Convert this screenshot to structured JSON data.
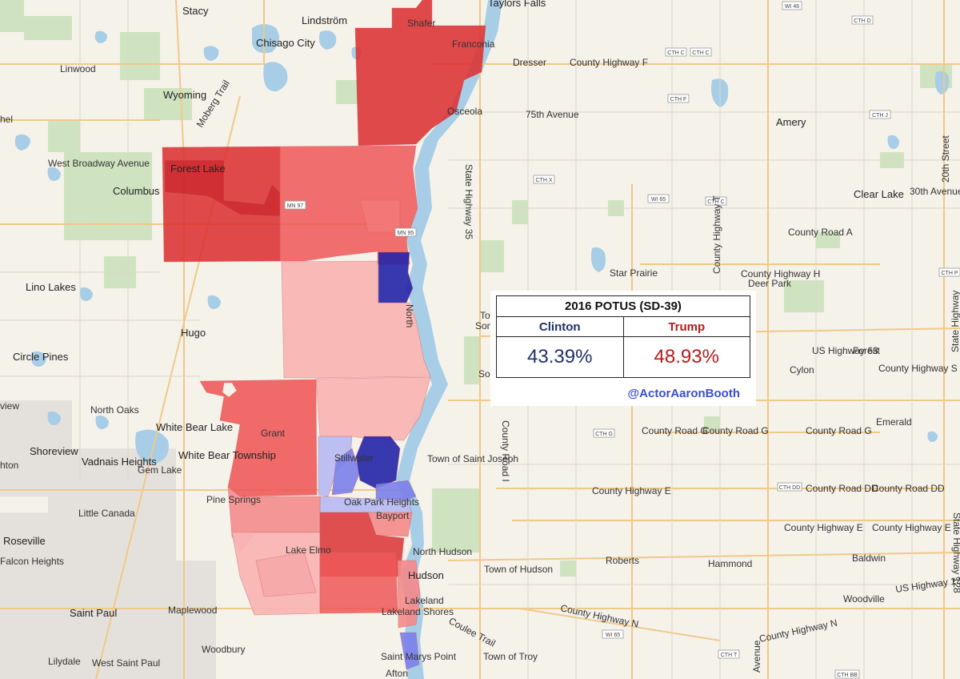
{
  "map": {
    "places": [
      "Stacy",
      "Lindström",
      "Taylors Falls",
      "Shafer",
      "Franconia",
      "Chisago City",
      "Linwood",
      "Wyoming",
      "Dresser",
      "Osceola",
      "Amery",
      "Forest Lake",
      "Columbus",
      "Clear Lake",
      "Star Prairie",
      "Deer Park",
      "Lino Lakes",
      "Hugo",
      "Circle Pines",
      "Forest",
      "Cylon",
      "North Oaks",
      "White Bear Lake",
      "White Bear Township",
      "Grant",
      "Shoreview",
      "Vadnais Heights",
      "Gem Lake",
      "Stillwater",
      "Town of Saint Joseph",
      "Emerald",
      "Little Canada",
      "Pine Springs",
      "Oak Park Heights",
      "Bayport",
      "Roseville",
      "Falcon Heights",
      "Lake Elmo",
      "North Hudson",
      "Roberts",
      "Hammond",
      "Baldwin",
      "Town of Hudson",
      "Hudson",
      "Woodville",
      "Lakeland",
      "Lakeland Shores",
      "Saint Paul",
      "Maplewood",
      "Woodbury",
      "West Saint Paul",
      "Lilydale",
      "Saint Marys Point",
      "Afton",
      "Town of Troy",
      "Tow",
      "Som",
      "Son",
      "hel",
      "view",
      "hton"
    ],
    "roads": [
      "County Highway F",
      "75th Avenue",
      "West Broadway Avenue",
      "Moberg Trail",
      "30th Avenue",
      "County Road A",
      "County Highway H",
      "US Highway 63",
      "State Highway 35",
      "County Highway S",
      "County Road G",
      "County Road G",
      "County Road G",
      "County Highway E",
      "County Road DD",
      "County Road DD",
      "County Highway E",
      "County Highway E",
      "County Highway N",
      "County Highway N",
      "Coulee Trail",
      "US Highway 12",
      "State Highway 128",
      "County Road I",
      "County Highway T",
      "20th Street",
      "Avenue",
      "State Highway",
      "North"
    ],
    "shields": [
      "WI 46",
      "CTH D",
      "CTH C",
      "CTH C",
      "CTH F",
      "CTH J",
      "CTH X",
      "WI 65",
      "CTH C",
      "MN 97",
      "MN 95",
      "CTH P",
      "CTH G",
      "CTH DD",
      "WI 65",
      "CTH T",
      "CTH BB"
    ],
    "colors": {
      "strong_rep": "#dc2b2e",
      "rep": "#ee5757",
      "lean_rep": "#f48989",
      "tilt_rep": "#f8b5b4",
      "tilt_dem": "#b9bcf3",
      "lean_dem": "#7b80ea",
      "strong_dem": "#2424a8"
    }
  },
  "results": {
    "title": "2016 POTUS (SD-39)",
    "candidates": [
      {
        "name": "Clinton",
        "pct": "43.39%",
        "color": "#1f2f6b"
      },
      {
        "name": "Trump",
        "pct": "48.93%",
        "color": "#b51a1a"
      }
    ],
    "credit": "@ActorAaronBooth"
  }
}
